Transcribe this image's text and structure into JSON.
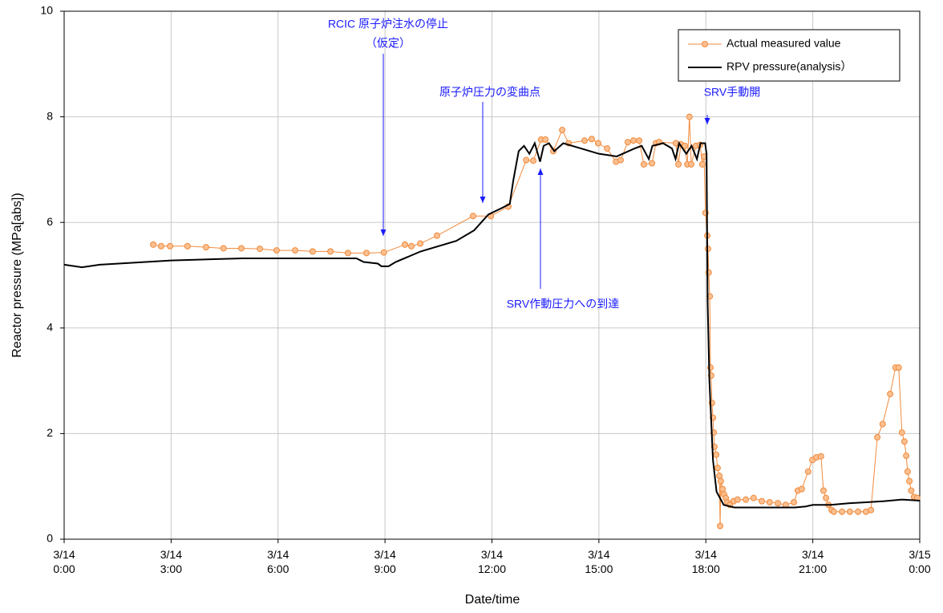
{
  "chart_data": {
    "type": "line",
    "x_label": "Date/time",
    "y_label": "Reactor pressure (MPa[abs])",
    "xlim": [
      0,
      24
    ],
    "xticks": [
      {
        "value": 0,
        "label": "3/14\n0:00"
      },
      {
        "value": 3,
        "label": "3/14\n3:00"
      },
      {
        "value": 6,
        "label": "3/14\n6:00"
      },
      {
        "value": 9,
        "label": "3/14\n9:00"
      },
      {
        "value": 12,
        "label": "3/14\n12:00"
      },
      {
        "value": 15,
        "label": "3/14\n15:00"
      },
      {
        "value": 18,
        "label": "3/14\n18:00"
      },
      {
        "value": 21,
        "label": "3/14\n21:00"
      },
      {
        "value": 24,
        "label": "3/15\n0:00"
      }
    ],
    "ylim": [
      0,
      10
    ],
    "yticks": [
      0,
      2,
      4,
      6,
      8,
      10
    ],
    "grid": true,
    "legend": "top-right",
    "annotations": [
      "RCIC 原子炉注水の停止",
      "（仮定）",
      "原子炉圧力の変曲点",
      "SRV作動圧力への到達",
      "SRV手動開"
    ],
    "annotation_color": "#1a1aff",
    "series": [
      {
        "name": "Actual measured value",
        "color": "#f08a3c",
        "marker": "circle",
        "x": [
          2.5,
          2.72,
          2.97,
          3.46,
          3.98,
          4.47,
          4.97,
          5.49,
          5.96,
          6.48,
          6.97,
          7.47,
          7.96,
          8.48,
          8.97,
          9.56,
          9.74,
          9.99,
          10.46,
          11.47,
          11.97,
          12.46,
          12.96,
          13.16,
          13.38,
          13.5,
          13.72,
          13.97,
          14.15,
          14.6,
          14.8,
          14.98,
          15.23,
          15.48,
          15.61,
          15.81,
          15.97,
          16.13,
          16.26,
          16.49,
          16.6,
          16.69,
          17.16,
          17.23,
          17.3,
          17.41,
          17.48,
          17.54,
          17.59,
          17.72,
          17.84,
          17.9,
          17.95,
          17.99,
          18.04,
          18.06,
          18.08,
          18.11,
          18.13,
          18.15,
          18.17,
          18.2,
          18.22,
          18.24,
          18.29,
          18.33,
          18.38,
          18.4,
          18.42,
          18.47,
          18.51,
          18.56,
          18.6,
          18.67,
          18.78,
          18.89,
          19.12,
          19.34,
          19.57,
          19.79,
          20.02,
          20.24,
          20.47,
          20.58,
          20.69,
          20.87,
          20.99,
          21.1,
          21.23,
          21.3,
          21.37,
          21.44,
          21.53,
          21.59,
          21.82,
          22.04,
          22.27,
          22.49,
          22.63,
          22.81,
          22.96,
          23.17,
          23.32,
          23.41,
          23.5,
          23.57,
          23.62,
          23.66,
          23.71,
          23.76,
          23.84,
          23.93
        ],
        "values": [
          5.58,
          5.55,
          5.55,
          5.55,
          5.53,
          5.51,
          5.51,
          5.5,
          5.47,
          5.47,
          5.45,
          5.45,
          5.42,
          5.42,
          5.43,
          5.58,
          5.55,
          5.6,
          5.75,
          6.12,
          6.12,
          6.3,
          7.18,
          7.17,
          7.57,
          7.57,
          7.35,
          7.75,
          7.5,
          7.55,
          7.58,
          7.5,
          7.4,
          7.15,
          7.18,
          7.52,
          7.55,
          7.55,
          7.1,
          7.12,
          7.5,
          7.52,
          7.5,
          7.1,
          7.48,
          7.45,
          7.1,
          8.0,
          7.1,
          7.45,
          7.47,
          7.1,
          7.25,
          6.18,
          5.75,
          5.5,
          5.05,
          4.6,
          3.25,
          3.1,
          2.58,
          2.3,
          2.02,
          1.75,
          1.6,
          1.35,
          1.2,
          0.25,
          1.1,
          0.95,
          0.85,
          0.78,
          0.7,
          0.65,
          0.72,
          0.75,
          0.75,
          0.78,
          0.72,
          0.7,
          0.68,
          0.65,
          0.7,
          0.92,
          0.95,
          1.28,
          1.5,
          1.55,
          1.57,
          0.92,
          0.78,
          0.65,
          0.55,
          0.52,
          0.52,
          0.52,
          0.52,
          0.52,
          0.55,
          1.93,
          2.18,
          2.75,
          3.25,
          3.25,
          2.02,
          1.85,
          1.58,
          1.28,
          1.1,
          0.92,
          0.8,
          0.78
        ]
      },
      {
        "name": "RPV pressure(analysis）",
        "color": "#000000",
        "x": [
          0,
          0.5,
          1,
          3,
          5,
          8.2,
          8.4,
          8.8,
          8.9,
          9.1,
          9.3,
          10,
          11,
          11.5,
          11.9,
          12.3,
          12.5,
          12.6,
          12.75,
          12.9,
          13.05,
          13.2,
          13.35,
          13.45,
          13.6,
          13.75,
          14,
          14.5,
          15,
          15.5,
          16,
          16.2,
          16.4,
          16.5,
          16.8,
          17.05,
          17.15,
          17.25,
          17.45,
          17.6,
          17.75,
          17.85,
          17.98,
          18.02,
          18.05,
          18.1,
          18.2,
          18.3,
          18.5,
          18.8,
          20,
          20.5,
          20.8,
          21,
          21.5,
          22,
          22.5,
          23,
          23.5,
          24
        ],
        "values": [
          5.2,
          5.15,
          5.2,
          5.28,
          5.32,
          5.32,
          5.25,
          5.22,
          5.17,
          5.17,
          5.25,
          5.45,
          5.65,
          5.85,
          6.15,
          6.28,
          6.35,
          6.8,
          7.35,
          7.45,
          7.3,
          7.5,
          7.15,
          7.45,
          7.5,
          7.35,
          7.5,
          7.4,
          7.3,
          7.25,
          7.4,
          7.45,
          7.2,
          7.45,
          7.5,
          7.4,
          7.2,
          7.5,
          7.3,
          7.45,
          7.2,
          7.5,
          7.5,
          7.3,
          4.5,
          3.0,
          1.5,
          0.9,
          0.65,
          0.6,
          0.6,
          0.6,
          0.62,
          0.65,
          0.65,
          0.68,
          0.7,
          0.72,
          0.75,
          0.73
        ]
      }
    ]
  }
}
